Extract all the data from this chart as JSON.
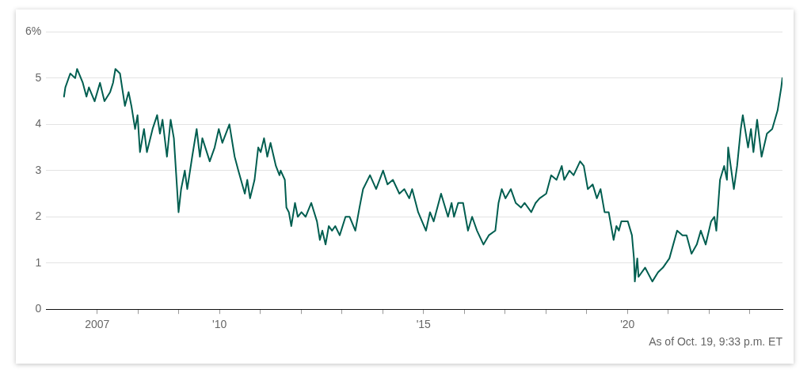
{
  "chart_data": {
    "type": "line",
    "x": [
      "2006-03-10",
      "2006-03-22",
      "2006-05-05",
      "2006-06-18",
      "2006-07-05",
      "2006-08-25",
      "2006-09-27",
      "2006-10-19",
      "2006-12-09",
      "2007-01-26",
      "2007-03-07",
      "2007-04-27",
      "2007-05-23",
      "2007-06-13",
      "2007-07-24",
      "2007-09-06",
      "2007-10-09",
      "2007-11-03",
      "2007-12-06",
      "2007-12-28",
      "2008-01-19",
      "2008-02-24",
      "2008-03-21",
      "2008-05-11",
      "2008-06-21",
      "2008-07-16",
      "2008-08-08",
      "2008-09-17",
      "2008-10-20",
      "2008-11-18",
      "2008-12-17",
      "2008-12-30",
      "2009-01-22",
      "2009-02-24",
      "2009-03-18",
      "2009-05-01",
      "2009-06-10",
      "2009-07-09",
      "2009-07-31",
      "2009-10-05",
      "2009-11-18",
      "2009-12-25",
      "2010-01-26",
      "2010-03-30",
      "2010-05-16",
      "2010-06-18",
      "2010-08-15",
      "2010-09-06",
      "2010-10-01",
      "2010-11-10",
      "2010-12-13",
      "2011-01-04",
      "2011-02-03",
      "2011-03-04",
      "2011-04-02",
      "2011-05-20",
      "2011-06-21",
      "2011-07-02",
      "2011-08-08",
      "2011-08-22",
      "2011-09-13",
      "2011-10-05",
      "2011-11-07",
      "2011-12-02",
      "2012-01-04",
      "2012-02-10",
      "2012-04-01",
      "2012-05-22",
      "2012-06-17",
      "2012-07-09",
      "2012-08-07",
      "2012-09-05",
      "2012-10-04",
      "2012-11-02",
      "2012-12-12",
      "2013-02-02",
      "2013-03-11",
      "2013-05-01",
      "2013-06-07",
      "2013-07-09",
      "2013-09-09",
      "2013-11-03",
      "2014-01-04",
      "2014-02-13",
      "2014-04-02",
      "2014-05-30",
      "2014-07-13",
      "2014-08-26",
      "2014-09-21",
      "2014-11-14",
      "2015-01-23",
      "2015-02-28",
      "2015-04-02",
      "2015-06-07",
      "2015-08-08",
      "2015-09-09",
      "2015-10-01",
      "2015-11-07",
      "2015-12-21",
      "2016-02-03",
      "2016-03-11",
      "2016-04-24",
      "2016-06-21",
      "2016-08-08",
      "2016-10-05",
      "2016-11-03",
      "2016-12-02",
      "2017-01-04",
      "2017-02-21",
      "2017-04-06",
      "2017-05-23",
      "2017-06-25",
      "2017-08-23",
      "2017-10-01",
      "2017-11-06",
      "2018-01-04",
      "2018-02-17",
      "2018-04-06",
      "2018-05-23",
      "2018-06-14",
      "2018-07-31",
      "2018-09-06",
      "2018-11-03",
      "2018-12-06",
      "2019-01-11",
      "2019-02-24",
      "2019-04-02",
      "2019-05-05",
      "2019-06-10",
      "2019-07-17",
      "2019-08-30",
      "2019-09-24",
      "2019-10-16",
      "2019-11-07",
      "2020-01-04",
      "2020-02-10",
      "2020-02-28",
      "2020-03-07",
      "2020-03-29",
      "2020-04-09",
      "2020-06-07",
      "2020-08-11",
      "2020-10-01",
      "2020-11-14",
      "2021-01-11",
      "2021-03-21",
      "2021-05-08",
      "2021-06-14",
      "2021-07-28",
      "2021-09-13",
      "2021-10-19",
      "2021-12-02",
      "2022-01-19",
      "2022-02-17",
      "2022-03-07",
      "2022-04-09",
      "2022-05-16",
      "2022-06-10",
      "2022-06-21",
      "2022-08-11",
      "2022-09-09",
      "2022-10-12",
      "2022-10-30",
      "2022-12-16",
      "2023-01-11",
      "2023-02-02",
      "2023-03-07",
      "2023-04-16",
      "2023-06-03",
      "2023-07-20",
      "2023-09-06",
      "2023-10-09",
      "2023-10-19"
    ],
    "series": [
      {
        "color": "#005e50",
        "values": [
          4.6,
          4.8,
          5.1,
          5.0,
          5.2,
          4.9,
          4.6,
          4.8,
          4.5,
          4.9,
          4.5,
          4.7,
          4.9,
          5.2,
          5.1,
          4.4,
          4.7,
          4.4,
          3.9,
          4.2,
          3.4,
          3.9,
          3.4,
          3.9,
          4.2,
          3.8,
          4.1,
          3.3,
          4.1,
          3.7,
          2.6,
          2.1,
          2.6,
          3.0,
          2.6,
          3.3,
          3.9,
          3.3,
          3.7,
          3.2,
          3.5,
          3.9,
          3.6,
          4.0,
          3.3,
          3.0,
          2.5,
          2.8,
          2.4,
          2.8,
          3.5,
          3.4,
          3.7,
          3.3,
          3.6,
          3.1,
          2.9,
          3.0,
          2.8,
          2.2,
          2.1,
          1.8,
          2.3,
          2.0,
          2.1,
          2.0,
          2.3,
          1.9,
          1.5,
          1.7,
          1.4,
          1.8,
          1.7,
          1.8,
          1.6,
          2.0,
          2.0,
          1.7,
          2.2,
          2.6,
          2.9,
          2.6,
          3.0,
          2.7,
          2.8,
          2.5,
          2.6,
          2.4,
          2.6,
          2.1,
          1.7,
          2.1,
          1.9,
          2.5,
          2.0,
          2.3,
          2.0,
          2.3,
          2.3,
          1.7,
          2.0,
          1.7,
          1.4,
          1.6,
          1.7,
          2.3,
          2.6,
          2.4,
          2.6,
          2.3,
          2.2,
          2.3,
          2.1,
          2.3,
          2.4,
          2.5,
          2.9,
          2.8,
          3.1,
          2.8,
          3.0,
          2.9,
          3.2,
          3.1,
          2.6,
          2.7,
          2.4,
          2.6,
          2.1,
          2.1,
          1.5,
          1.8,
          1.7,
          1.9,
          1.9,
          1.6,
          1.1,
          0.6,
          1.1,
          0.7,
          0.9,
          0.6,
          0.8,
          0.9,
          1.1,
          1.7,
          1.6,
          1.6,
          1.2,
          1.4,
          1.7,
          1.4,
          1.9,
          2.0,
          1.7,
          2.8,
          3.1,
          2.8,
          3.5,
          2.6,
          3.1,
          3.9,
          4.2,
          3.5,
          3.9,
          3.4,
          4.1,
          3.3,
          3.8,
          3.9,
          4.3,
          4.8,
          5.0
        ]
      }
    ],
    "xlim": [
      "2005-10-01",
      "2023-10-20"
    ],
    "xticks": [
      "2007",
      {
        "value": "2008",
        "label": null
      },
      {
        "value": "2009",
        "label": null
      },
      {
        "value": "2010",
        "label": "'10"
      },
      {
        "value": "2011",
        "label": null
      },
      {
        "value": "2012",
        "label": null
      },
      {
        "value": "2013",
        "label": null
      },
      {
        "value": "2014",
        "label": null
      },
      {
        "value": "2015",
        "label": "'15"
      },
      {
        "value": "2016",
        "label": null
      },
      {
        "value": "2017",
        "label": null
      },
      {
        "value": "2018",
        "label": null
      },
      {
        "value": "2019",
        "label": null
      },
      {
        "value": "2020",
        "label": "'20"
      },
      {
        "value": "2021",
        "label": null
      },
      {
        "value": "2022",
        "label": null
      },
      {
        "value": "2023",
        "label": null
      }
    ],
    "ylim": [
      0,
      6
    ],
    "yticks": [
      0,
      1,
      2,
      3,
      4,
      5,
      {
        "value": 6,
        "label": "6%"
      }
    ],
    "grid": "y",
    "annotations": [
      "As of Oct. 19, 9:33 p.m. ET"
    ]
  }
}
